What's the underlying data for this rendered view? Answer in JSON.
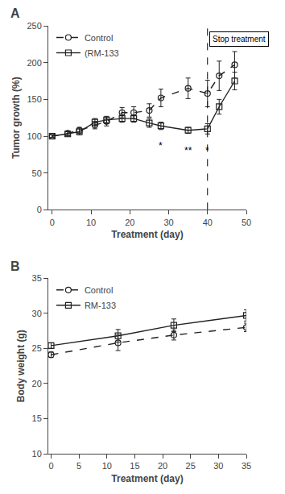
{
  "chart_data": [
    {
      "type": "line",
      "title": "A",
      "xlabel": "Treatment (day)",
      "ylabel": "Tumor growth (%)",
      "xlim": [
        -1,
        50
      ],
      "ylim": [
        0,
        250
      ],
      "xticks": [
        0,
        10,
        20,
        30,
        40,
        50
      ],
      "yticks": [
        0,
        50,
        100,
        150,
        200,
        250
      ],
      "grid": false,
      "legend": "upper left",
      "series": [
        {
          "name": "Control",
          "color": "#222222",
          "marker": "circle",
          "line_style": "dashed",
          "x": [
            0,
            4,
            7,
            11,
            14,
            18,
            21,
            25,
            28,
            35,
            40,
            43,
            47
          ],
          "values": [
            100,
            104,
            108,
            115,
            120,
            132,
            132,
            135,
            152,
            165,
            158,
            182,
            197
          ],
          "yerr": [
            2,
            3,
            4,
            5,
            6,
            7,
            8,
            9,
            12,
            14,
            18,
            20,
            18
          ]
        },
        {
          "name": "(RM-133",
          "color": "#222222",
          "marker": "square",
          "line_style": "solid",
          "x": [
            0,
            4,
            7,
            11,
            14,
            18,
            21,
            25,
            28,
            35,
            40,
            43,
            47
          ],
          "values": [
            100,
            103,
            106,
            119,
            122,
            124,
            124,
            118,
            114,
            108,
            110,
            140,
            175
          ],
          "yerr": [
            2,
            3,
            4,
            5,
            5,
            5,
            5,
            6,
            5,
            4,
            7,
            10,
            12
          ]
        }
      ],
      "vline": 40,
      "annotations": [
        {
          "x": 28,
          "y": 97,
          "text": "*"
        },
        {
          "x": 35,
          "y": 90,
          "text": "**"
        },
        {
          "x": 40,
          "y": 90,
          "text": "*"
        }
      ],
      "note": {
        "x": 40.5,
        "y": 242,
        "text": "Stop treatment"
      }
    },
    {
      "type": "line",
      "title": "B",
      "xlabel": "Treatment (day)",
      "ylabel": "Body weight (g)",
      "xlim": [
        -0.5,
        35
      ],
      "ylim": [
        10,
        35
      ],
      "xticks": [
        0,
        5,
        10,
        15,
        20,
        25,
        30,
        35
      ],
      "yticks": [
        10,
        15,
        20,
        25,
        30,
        35
      ],
      "grid": false,
      "legend": "upper left",
      "series": [
        {
          "name": "Control",
          "color": "#222222",
          "marker": "circle",
          "line_style": "dashed",
          "x": [
            0,
            12,
            22,
            35
          ],
          "values": [
            24.1,
            25.8,
            26.9,
            28.0
          ],
          "yerr": [
            0.4,
            1.1,
            0.7,
            0.6
          ]
        },
        {
          "name": "RM-133",
          "color": "#222222",
          "marker": "square",
          "line_style": "solid",
          "x": [
            0,
            12,
            22,
            35
          ],
          "values": [
            25.4,
            26.8,
            28.3,
            29.7
          ],
          "yerr": [
            0.4,
            0.9,
            0.9,
            0.8
          ]
        }
      ]
    }
  ]
}
